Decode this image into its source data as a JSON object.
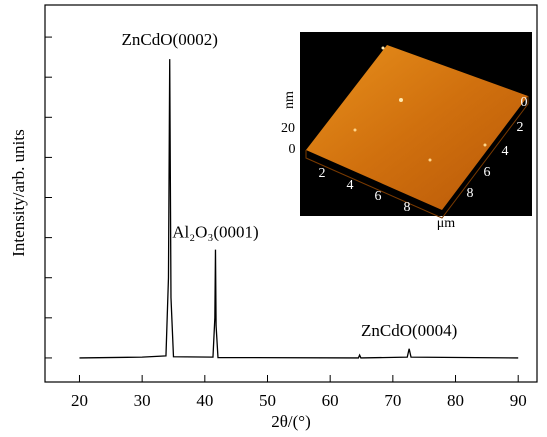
{
  "chart_data": {
    "type": "line",
    "x_label": "2θ/(°)",
    "y_label": "Intensity/arb. units",
    "x": [
      20,
      30,
      33.8,
      34.2,
      34.4,
      34.6,
      35,
      41.3,
      41.6,
      41.7,
      41.8,
      42.1,
      64.5,
      64.7,
      64.9,
      72.3,
      72.6,
      72.9,
      90
    ],
    "values": [
      0,
      0.2,
      0.5,
      20,
      74.5,
      15,
      0.3,
      0.2,
      10,
      27,
      8,
      0.1,
      0,
      0.7,
      0,
      0.2,
      2.3,
      0.2,
      0
    ],
    "color": "#000000",
    "xlim": [
      14.5,
      93
    ],
    "xticks": [
      20,
      30,
      40,
      50,
      60,
      70,
      80,
      90
    ],
    "ylim": [
      -6,
      88
    ],
    "yticks": [
      0,
      10,
      20,
      30,
      40,
      50,
      60,
      70,
      80
    ],
    "annotations": [
      {
        "text": "ZnCdO(0002)",
        "x": 34.4,
        "y": 79
      },
      {
        "text": "Al₂O₃(0001)",
        "x": 41.7,
        "y": 31
      },
      {
        "text": "ZnCdO(0004)",
        "x": 72.6,
        "y": 6.5
      }
    ],
    "inset": {
      "z_label": "nm",
      "z_ticks": [
        20,
        0
      ],
      "x_ticks": [
        2,
        4,
        6,
        8
      ],
      "y_ticks": [
        0,
        2,
        4,
        6,
        8
      ],
      "unit": "μm"
    }
  }
}
